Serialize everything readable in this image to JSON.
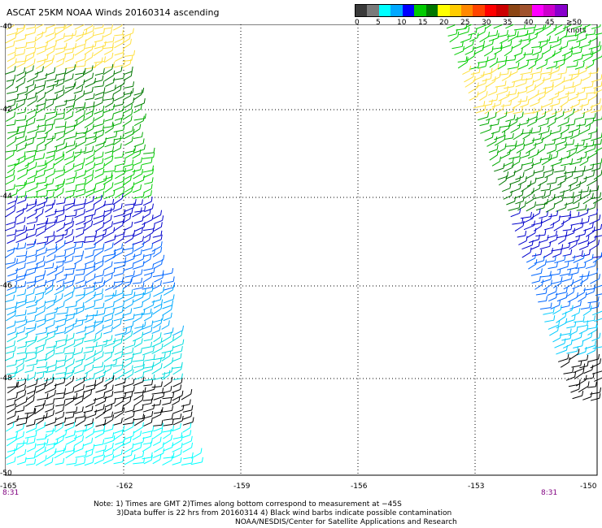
{
  "title": "ASCAT 25KM NOAA Winds 20160314 ascending",
  "legend": {
    "colors": [
      "#3a3a3a",
      "#7a7a7a",
      "#00ffff",
      "#00a8ff",
      "#0000ff",
      "#00cc00",
      "#007700",
      "#ffff00",
      "#ffcc00",
      "#ff8800",
      "#ff4400",
      "#ff0000",
      "#cc0000",
      "#8b4513",
      "#a0522d",
      "#ff00ff",
      "#cc00cc",
      "#8800cc"
    ],
    "labels": [
      "0",
      "5",
      "10",
      "15",
      "20",
      "25",
      "30",
      "35",
      "40",
      "45",
      "≥50 knots"
    ]
  },
  "axes": {
    "lat_labels": [
      "-40",
      "-42",
      "-44",
      "-46",
      "-48",
      "-50"
    ],
    "lon_labels": [
      "-165",
      "-162",
      "-159",
      "-156",
      "-153",
      "-150"
    ]
  },
  "times": {
    "left": "8:31",
    "right": "8:31"
  },
  "notes": {
    "line1": "Note: 1) Times are GMT 2)Times along bottom correspond to measurement at −45S",
    "line2": "3)Data buffer is 22 hrs from 20160314 4) Black wind barbs indicate possible contamination",
    "line3": "NOAA/NESDIS/Center for Satellite Applications and Research"
  },
  "map": {
    "gridlines": "dotted",
    "left_swath_colors_top_to_bottom": [
      "#ffe040",
      "#007700",
      "#00aa00",
      "#00cc00",
      "#0000cc",
      "#0066ff",
      "#00aaff",
      "#00dddd",
      "#000000",
      "#00ffff"
    ],
    "right_swath_colors_top_to_bottom": [
      "#00cc00",
      "#ffe040",
      "#00aa00",
      "#007700",
      "#0000cc",
      "#0066ff",
      "#00ccff",
      "#000000"
    ]
  }
}
